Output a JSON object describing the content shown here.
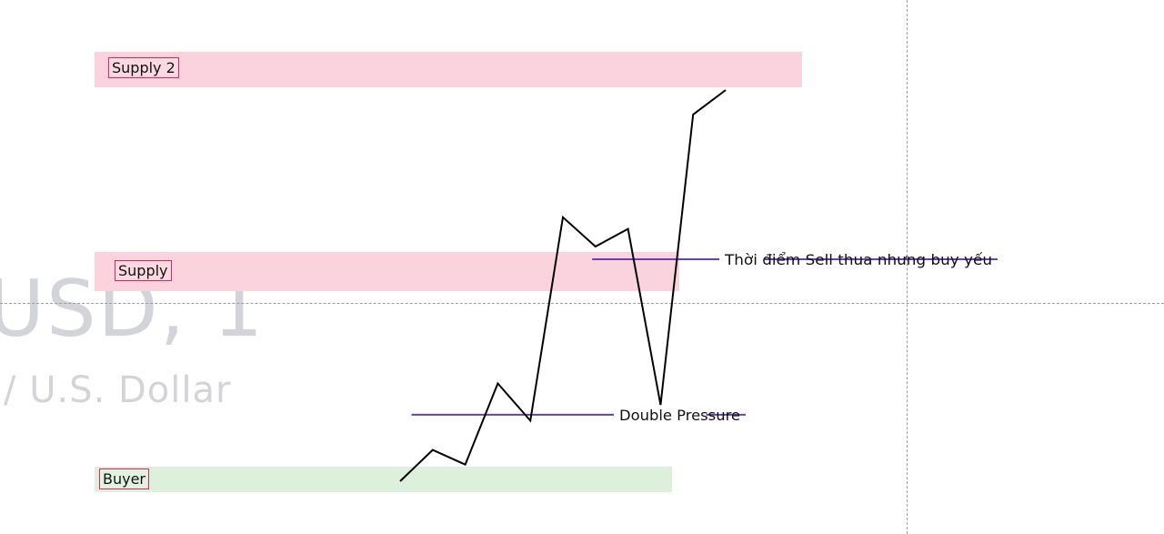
{
  "watermark": {
    "symbol": "USD, 1",
    "name": "/ U.S. Dollar"
  },
  "chart_data": {
    "type": "line",
    "price_path": {
      "x": [
        0,
        1,
        2,
        3,
        4,
        5,
        6,
        7,
        8,
        9,
        10
      ],
      "y": [
        0.0,
        0.32,
        0.17,
        1.0,
        0.62,
        2.7,
        2.4,
        2.58,
        0.78,
        3.75,
        4.0
      ]
    },
    "ylim": [
      -0.3,
      4.6
    ],
    "zones": [
      {
        "label": "Supply 2",
        "type": "supply",
        "y_low": 3.86,
        "y_high": 4.23,
        "x_start": -3.3,
        "x_end": 7.7
      },
      {
        "label": "Supply",
        "type": "supply",
        "y_low": 1.95,
        "y_high": 2.36,
        "x_start": -3.3,
        "x_end": 6.1
      },
      {
        "label": "Buyer",
        "type": "buyer",
        "y_low": -0.12,
        "y_high": 0.15,
        "x_start": -3.3,
        "x_end": 6.0
      }
    ],
    "annotations": [
      {
        "text": "Thời điểm Sell thua nhưng buy yếu",
        "y": 2.27,
        "x_start": 5.9,
        "x_end": 11.2
      },
      {
        "text": "Double Pressure",
        "y": 0.68,
        "x_start": 0.35,
        "x_end": 9.4
      }
    ],
    "colors": {
      "price_line": "#000000",
      "annotation_line": "#6a3fb0",
      "supply_zone": "#fad3df",
      "buyer_zone": "#dcf0db",
      "label_border": "#e0245e"
    }
  }
}
